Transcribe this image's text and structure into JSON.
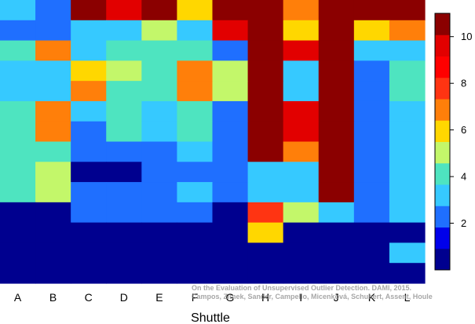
{
  "chart_data": {
    "type": "heatmap",
    "title": "",
    "xlabel": "Shuttle",
    "ylabel": "",
    "categories": [
      "A",
      "B",
      "C",
      "D",
      "E",
      "F",
      "G",
      "H",
      "I",
      "J",
      "K",
      "L"
    ],
    "value_range": [
      0,
      11
    ],
    "colorbar_ticks": [
      2,
      4,
      6,
      8,
      10
    ],
    "colormap": "jet",
    "grid": false,
    "legend": "colorbar-right",
    "rows": [
      [
        3,
        2,
        11,
        10,
        11,
        6,
        11,
        11,
        7,
        11,
        11,
        11
      ],
      [
        2,
        2,
        3,
        3,
        5,
        3,
        10,
        11,
        6,
        11,
        6,
        7
      ],
      [
        4,
        7,
        3,
        4,
        4,
        4,
        2,
        11,
        10,
        11,
        3,
        3
      ],
      [
        3,
        3,
        6,
        5,
        4,
        7,
        5,
        11,
        3,
        11,
        2,
        4
      ],
      [
        3,
        3,
        7,
        4,
        4,
        7,
        5,
        11,
        3,
        11,
        2,
        4
      ],
      [
        4,
        7,
        3,
        4,
        3,
        4,
        2,
        11,
        10,
        11,
        2,
        3
      ],
      [
        4,
        7,
        2,
        4,
        3,
        4,
        2,
        11,
        10,
        11,
        2,
        3
      ],
      [
        4,
        4,
        2,
        2,
        2,
        3,
        2,
        11,
        7,
        11,
        2,
        3
      ],
      [
        4,
        5,
        0,
        0,
        2,
        2,
        2,
        3,
        3,
        11,
        2,
        3
      ],
      [
        4,
        5,
        2,
        2,
        2,
        3,
        2,
        3,
        3,
        11,
        2,
        3
      ],
      [
        0,
        0,
        2,
        2,
        2,
        2,
        0,
        8,
        5,
        3,
        2,
        3
      ],
      [
        0,
        0,
        0,
        0,
        0,
        0,
        0,
        6,
        0,
        0,
        0,
        0
      ],
      [
        0,
        0,
        0,
        0,
        0,
        0,
        0,
        0,
        0,
        0,
        0,
        3
      ],
      [
        0,
        0,
        0,
        0,
        0,
        0,
        0,
        0,
        0,
        0,
        0,
        0
      ]
    ]
  },
  "watermark": {
    "line1": "On the Evaluation of Unsupervised Outlier Detection. DAMI, 2015.",
    "line2": "Campos, Zimek, Sander, Campello, Micenková, Schubert, Assent, Houle"
  }
}
